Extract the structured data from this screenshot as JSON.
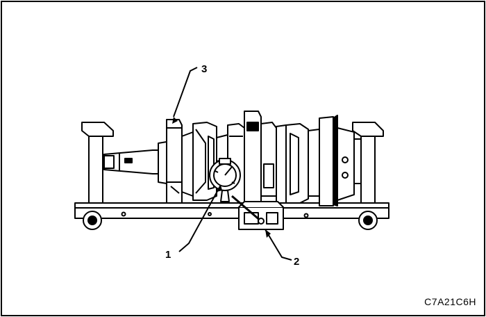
{
  "figure": {
    "callouts": [
      "1",
      "2",
      "3"
    ],
    "reference_code": "C7A21C6H"
  },
  "colors": {
    "ink": "#000000",
    "paper": "#ffffff"
  }
}
